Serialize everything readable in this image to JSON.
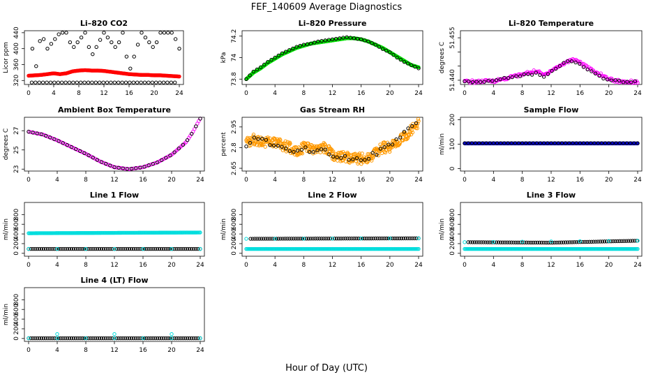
{
  "figure": {
    "title": "FEF_140609  Average Diagnostics",
    "xlabel": "Hour of Day (UTC)"
  },
  "chart_data": [
    {
      "type": "scatter",
      "title": "Li–820 CO2",
      "ylabel": "Licor ppm",
      "xlim": [
        0,
        24
      ],
      "ylim": [
        310,
        445
      ],
      "xticks": [
        0,
        4,
        8,
        12,
        16,
        20,
        24
      ],
      "yticks": [
        320,
        360,
        400,
        440
      ],
      "series": [
        {
          "name": "black",
          "color": "#000000",
          "step": 0.6,
          "x": [
            0.6,
            1,
            2,
            3,
            5,
            6,
            7,
            9,
            10,
            12,
            14,
            15,
            16,
            18,
            20,
            21,
            23,
            24
          ],
          "y": [
            400,
            335,
            440,
            400,
            440,
            440,
            400,
            440,
            380,
            440,
            400,
            440,
            340,
            440,
            400,
            440,
            440,
            400
          ]
        },
        {
          "name": "black-low",
          "color": "#000000",
          "step": 0.6,
          "x": [
            0.5,
            3,
            6,
            8,
            11,
            13,
            15,
            17,
            19,
            20.5,
            23.5
          ],
          "y": [
            315,
            315,
            315,
            315,
            315,
            315,
            315,
            315,
            315,
            315,
            315
          ]
        },
        {
          "name": "red",
          "color": "#ff0000",
          "step": 0.1,
          "x": [
            0,
            1,
            2,
            3,
            4,
            5,
            6,
            7,
            8,
            9,
            10,
            11,
            12,
            13,
            14,
            15,
            16,
            17,
            18,
            19,
            20,
            21,
            22,
            23,
            24
          ],
          "y": [
            332,
            333,
            334,
            336,
            338,
            336,
            338,
            343,
            345,
            346,
            345,
            345,
            344,
            342,
            340,
            338,
            336,
            335,
            334,
            334,
            333,
            333,
            332,
            331,
            330
          ]
        }
      ]
    },
    {
      "type": "scatter",
      "title": "Li–820 Pressure",
      "ylabel": "kPa",
      "xlim": [
        0,
        24
      ],
      "ylim": [
        73.75,
        74.25
      ],
      "xticks": [
        0,
        4,
        8,
        12,
        16,
        20,
        24
      ],
      "yticks": [
        73.8,
        74.0,
        74.2
      ],
      "series": [
        {
          "name": "green",
          "color": "#00dd00",
          "step": 0.05,
          "x": [
            0,
            1,
            2,
            3,
            4,
            5,
            6,
            7,
            8,
            9,
            10,
            11,
            12,
            13,
            14,
            15,
            16,
            17,
            18,
            19,
            20,
            21,
            22,
            23,
            24
          ],
          "y": [
            73.8,
            73.86,
            73.9,
            73.95,
            73.99,
            74.03,
            74.06,
            74.09,
            74.11,
            74.13,
            74.14,
            74.15,
            74.16,
            74.17,
            74.18,
            74.18,
            74.17,
            74.15,
            74.12,
            74.09,
            74.05,
            74.01,
            73.97,
            73.93,
            73.91
          ]
        },
        {
          "name": "black",
          "color": "#000000",
          "step": 0.5,
          "x": [
            0,
            1,
            2,
            3,
            4,
            5,
            6,
            7,
            8,
            9,
            10,
            11,
            12,
            13,
            14,
            15,
            16,
            17,
            18,
            19,
            20,
            21,
            22,
            23,
            24
          ],
          "y": [
            73.8,
            73.87,
            73.91,
            73.96,
            74.0,
            74.04,
            74.07,
            74.1,
            74.12,
            74.13,
            74.15,
            74.16,
            74.17,
            74.18,
            74.19,
            74.18,
            74.17,
            74.15,
            74.12,
            74.08,
            74.05,
            74.0,
            73.96,
            73.93,
            73.9
          ]
        }
      ]
    },
    {
      "type": "scatter",
      "title": "Li–820 Temperature",
      "ylabel": "degrees C",
      "xlim": [
        0,
        24
      ],
      "ylim": [
        51.4385,
        51.4575
      ],
      "xticks": [
        0,
        4,
        8,
        12,
        16,
        20,
        24
      ],
      "yticks": [
        51.44,
        51.445,
        51.45,
        51.455
      ],
      "ytick_labels": [
        "51.440",
        "",
        "",
        "51.455"
      ],
      "series": [
        {
          "name": "magenta",
          "color": "#ff00ff",
          "step": 0.15,
          "jitter": 1.2,
          "x": [
            0,
            2,
            4,
            5,
            6,
            7,
            8,
            9,
            10,
            11,
            12,
            13,
            14,
            15,
            16,
            17,
            18,
            19,
            20,
            21,
            22,
            23,
            24
          ],
          "y": [
            51.4395,
            51.4395,
            51.4398,
            51.4402,
            51.4408,
            51.4415,
            51.442,
            51.4428,
            51.4432,
            51.4418,
            51.4435,
            51.4448,
            51.4462,
            51.4475,
            51.4465,
            51.4445,
            51.443,
            51.4418,
            51.4405,
            51.4398,
            51.4395,
            51.4395,
            51.4395
          ]
        },
        {
          "name": "black",
          "color": "#000000",
          "step": 0.55,
          "jitter": 0.6,
          "x": [
            0,
            2,
            4,
            5,
            6,
            7,
            8,
            9,
            10,
            11,
            12,
            13,
            14,
            15,
            16,
            17,
            18,
            19,
            20,
            21,
            22,
            23,
            24
          ],
          "y": [
            51.4395,
            51.4395,
            51.4398,
            51.4405,
            51.441,
            51.4412,
            51.4418,
            51.442,
            51.4425,
            51.441,
            51.443,
            51.4448,
            51.4465,
            51.447,
            51.4455,
            51.444,
            51.4425,
            51.441,
            51.4402,
            51.4398,
            51.4395,
            51.4395,
            51.4395
          ]
        }
      ]
    },
    {
      "type": "scatter",
      "title": "Ambient Box Temperature",
      "ylabel": "degrees C",
      "xlim": [
        0,
        24
      ],
      "ylim": [
        22.8,
        28.4
      ],
      "xticks": [
        0,
        4,
        8,
        12,
        16,
        20,
        24
      ],
      "yticks": [
        23,
        25,
        27
      ],
      "series": [
        {
          "name": "magenta",
          "color": "#ff00ff",
          "step": 0.2,
          "x": [
            0,
            2,
            4,
            6,
            8,
            10,
            12,
            14,
            16,
            18,
            20,
            22,
            23,
            24
          ],
          "y": [
            26.9,
            26.6,
            26.0,
            25.3,
            24.6,
            23.8,
            23.2,
            23.0,
            23.2,
            23.7,
            24.5,
            25.8,
            26.9,
            28.3
          ]
        },
        {
          "name": "black",
          "color": "#000000",
          "step": 0.6,
          "x": [
            0,
            2,
            4,
            6,
            8,
            10,
            12,
            14,
            16,
            18,
            20,
            22,
            23,
            24
          ],
          "y": [
            26.9,
            26.6,
            26.0,
            25.3,
            24.6,
            23.8,
            23.2,
            23.0,
            23.2,
            23.7,
            24.5,
            25.8,
            26.9,
            28.3
          ]
        }
      ]
    },
    {
      "type": "scatter",
      "title": "Gas Stream RH",
      "ylabel": "percent",
      "xlim": [
        0,
        24
      ],
      "ylim": [
        2.63,
        3.02
      ],
      "xticks": [
        0,
        4,
        8,
        12,
        16,
        20,
        24
      ],
      "yticks": [
        2.65,
        2.8,
        2.95
      ],
      "series": [
        {
          "name": "orange",
          "color": "#ff9900",
          "step": 0.06,
          "jitter": 4.5,
          "x": [
            0,
            1,
            2,
            3,
            4,
            5,
            6,
            7,
            8,
            9,
            10,
            11,
            12,
            13,
            14,
            15,
            16,
            17,
            18,
            19,
            20,
            21,
            22,
            23,
            24
          ],
          "y": [
            2.83,
            2.86,
            2.85,
            2.84,
            2.83,
            2.82,
            2.8,
            2.78,
            2.8,
            2.79,
            2.78,
            2.8,
            2.75,
            2.74,
            2.73,
            2.72,
            2.72,
            2.73,
            2.76,
            2.8,
            2.8,
            2.84,
            2.88,
            2.93,
            2.97
          ]
        },
        {
          "name": "black",
          "color": "#000000",
          "step": 0.55,
          "jitter": 2,
          "x": [
            0,
            1,
            2,
            3,
            4,
            5,
            6,
            7,
            8,
            9,
            10,
            11,
            12,
            13,
            14,
            15,
            16,
            17,
            18,
            19,
            20,
            21,
            22,
            23,
            24
          ],
          "y": [
            2.82,
            2.86,
            2.85,
            2.84,
            2.82,
            2.81,
            2.79,
            2.77,
            2.8,
            2.78,
            2.77,
            2.79,
            2.75,
            2.74,
            2.73,
            2.72,
            2.72,
            2.73,
            2.76,
            2.79,
            2.81,
            2.85,
            2.9,
            2.95,
            2.98
          ]
        }
      ]
    },
    {
      "type": "scatter",
      "title": "Sample Flow",
      "ylabel": "ml/min",
      "xlim": [
        0,
        24
      ],
      "ylim": [
        -10,
        210
      ],
      "xticks": [
        0,
        4,
        8,
        12,
        16,
        20,
        24
      ],
      "yticks": [
        0,
        100,
        200
      ],
      "series": [
        {
          "name": "blue",
          "color": "#0000cc",
          "step": 0.08,
          "x": [
            0,
            24
          ],
          "y": [
            103,
            103
          ]
        },
        {
          "name": "black",
          "color": "#000000",
          "step": 0.5,
          "x": [
            0,
            24
          ],
          "y": [
            104,
            104
          ]
        }
      ]
    },
    {
      "type": "scatter",
      "title": "Line 1 Flow",
      "ylabel": "ml/min",
      "xlim": [
        0,
        24
      ],
      "ylim": [
        -60,
        1050
      ],
      "xticks": [
        0,
        4,
        8,
        12,
        16,
        20,
        24
      ],
      "yticks": [
        0,
        200,
        400,
        600,
        800
      ],
      "series": [
        {
          "name": "cyan-upper",
          "color": "#00dddd",
          "step": 0.12,
          "x": [
            0,
            24
          ],
          "y": [
            415,
            430
          ]
        },
        {
          "name": "black",
          "color": "#000000",
          "step": 0.3,
          "x": [
            0,
            24
          ],
          "y": [
            90,
            90
          ]
        },
        {
          "name": "cyan-lower",
          "color": "#00dddd",
          "step": 4.0,
          "x": [
            0,
            24
          ],
          "y": [
            90,
            90
          ]
        }
      ]
    },
    {
      "type": "scatter",
      "title": "Line 2 Flow",
      "ylabel": "ml/min",
      "xlim": [
        0,
        24
      ],
      "ylim": [
        -60,
        1050
      ],
      "xticks": [
        0,
        4,
        8,
        12,
        16,
        20,
        24
      ],
      "yticks": [
        0,
        200,
        400,
        600,
        800
      ],
      "series": [
        {
          "name": "cyan-lower",
          "color": "#00dddd",
          "step": 0.12,
          "x": [
            0,
            24
          ],
          "y": [
            90,
            90
          ]
        },
        {
          "name": "black",
          "color": "#000000",
          "step": 0.3,
          "x": [
            0.6,
            24
          ],
          "y": [
            300,
            310
          ]
        },
        {
          "name": "cyan-upper",
          "color": "#00dddd",
          "step": 4.0,
          "x": [
            0,
            24
          ],
          "y": [
            300,
            310
          ]
        }
      ]
    },
    {
      "type": "scatter",
      "title": "Line 3 Flow",
      "ylabel": "ml/min",
      "xlim": [
        0,
        24
      ],
      "ylim": [
        -60,
        1050
      ],
      "xticks": [
        0,
        4,
        8,
        12,
        16,
        20,
        24
      ],
      "yticks": [
        0,
        200,
        400,
        600,
        800
      ],
      "series": [
        {
          "name": "cyan-lower",
          "color": "#00dddd",
          "step": 0.12,
          "x": [
            0,
            24
          ],
          "y": [
            90,
            90
          ]
        },
        {
          "name": "black",
          "color": "#000000",
          "step": 0.3,
          "x": [
            0.5,
            12,
            24
          ],
          "y": [
            230,
            220,
            260
          ]
        },
        {
          "name": "cyan-upper",
          "color": "#00dddd",
          "step": 4.0,
          "x": [
            0,
            24
          ],
          "y": [
            230,
            260
          ]
        }
      ]
    },
    {
      "type": "scatter",
      "title": "Line 4 (LT) Flow",
      "ylabel": "ml/min",
      "xlim": [
        0,
        24
      ],
      "ylim": [
        -60,
        1050
      ],
      "xticks": [
        0,
        4,
        8,
        12,
        16,
        20,
        24
      ],
      "yticks": [
        0,
        200,
        400,
        600,
        800
      ],
      "series": [
        {
          "name": "black",
          "color": "#000000",
          "step": 0.3,
          "x": [
            0,
            24
          ],
          "y": [
            5,
            5
          ]
        },
        {
          "name": "cyan",
          "color": "#00dddd",
          "step": 4.0,
          "x": [
            0,
            24
          ],
          "y": [
            5,
            5
          ]
        },
        {
          "name": "cyan-spikes",
          "color": "#00dddd",
          "step": 0,
          "x": [
            4,
            12,
            20
          ],
          "y": [
            90,
            90,
            90
          ]
        }
      ]
    }
  ]
}
